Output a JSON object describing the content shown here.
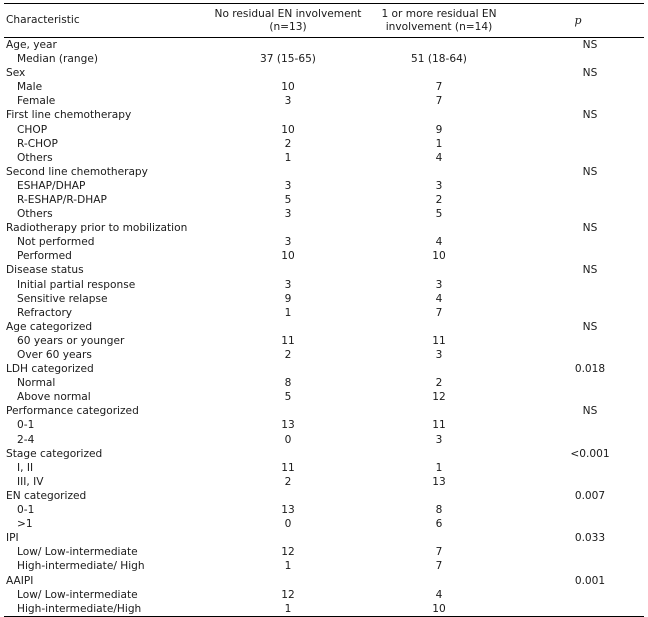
{
  "table": {
    "headers": {
      "characteristic": "Characteristic",
      "group1": "No residual EN involvement (n=13)",
      "group2": "1 or more residual EN involvement (n=14)",
      "p": "p"
    },
    "rows": [
      {
        "label": "Age, year",
        "indent": false,
        "g1": "",
        "g2": "",
        "p": "NS"
      },
      {
        "label": "Median (range)",
        "indent": true,
        "g1": "37 (15-65)",
        "g2": "51 (18-64)",
        "p": ""
      },
      {
        "label": "Sex",
        "indent": false,
        "g1": "",
        "g2": "",
        "p": "NS"
      },
      {
        "label": "Male",
        "indent": true,
        "g1": "10",
        "g2": "7",
        "p": ""
      },
      {
        "label": "Female",
        "indent": true,
        "g1": "3",
        "g2": "7",
        "p": ""
      },
      {
        "label": "First line chemotherapy",
        "indent": false,
        "g1": "",
        "g2": "",
        "p": "NS"
      },
      {
        "label": "CHOP",
        "indent": true,
        "g1": "10",
        "g2": "9",
        "p": ""
      },
      {
        "label": "R-CHOP",
        "indent": true,
        "g1": "2",
        "g2": "1",
        "p": ""
      },
      {
        "label": "Others",
        "indent": true,
        "g1": "1",
        "g2": "4",
        "p": ""
      },
      {
        "label": "Second line chemotherapy",
        "indent": false,
        "g1": "",
        "g2": "",
        "p": "NS"
      },
      {
        "label": "ESHAP/DHAP",
        "indent": true,
        "g1": "3",
        "g2": "3",
        "p": ""
      },
      {
        "label": "R-ESHAP/R-DHAP",
        "indent": true,
        "g1": "5",
        "g2": "2",
        "p": ""
      },
      {
        "label": "Others",
        "indent": true,
        "g1": "3",
        "g2": "5",
        "p": ""
      },
      {
        "label": "Radiotherapy prior to mobilization",
        "indent": false,
        "g1": "",
        "g2": "",
        "p": "NS"
      },
      {
        "label": "Not performed",
        "indent": true,
        "g1": "3",
        "g2": "4",
        "p": ""
      },
      {
        "label": "Performed",
        "indent": true,
        "g1": "10",
        "g2": "10",
        "p": ""
      },
      {
        "label": "Disease status",
        "indent": false,
        "g1": "",
        "g2": "",
        "p": "NS"
      },
      {
        "label": "Initial partial response",
        "indent": true,
        "g1": "3",
        "g2": "3",
        "p": ""
      },
      {
        "label": "Sensitive relapse",
        "indent": true,
        "g1": "9",
        "g2": "4",
        "p": ""
      },
      {
        "label": "Refractory",
        "indent": true,
        "g1": "1",
        "g2": "7",
        "p": ""
      },
      {
        "label": "Age categorized",
        "indent": false,
        "g1": "",
        "g2": "",
        "p": "NS"
      },
      {
        "label": "60 years or younger",
        "indent": true,
        "g1": "11",
        "g2": "11",
        "p": ""
      },
      {
        "label": "Over 60 years",
        "indent": true,
        "g1": "2",
        "g2": "3",
        "p": ""
      },
      {
        "label": "LDH categorized",
        "indent": false,
        "g1": "",
        "g2": "",
        "p": "0.018"
      },
      {
        "label": "Normal",
        "indent": true,
        "g1": "8",
        "g2": "2",
        "p": ""
      },
      {
        "label": "Above normal",
        "indent": true,
        "g1": "5",
        "g2": "12",
        "p": ""
      },
      {
        "label": "Performance categorized",
        "indent": false,
        "g1": "",
        "g2": "",
        "p": "NS"
      },
      {
        "label": "0-1",
        "indent": true,
        "g1": "13",
        "g2": "11",
        "p": ""
      },
      {
        "label": "2-4",
        "indent": true,
        "g1": "0",
        "g2": "3",
        "p": ""
      },
      {
        "label": "Stage categorized",
        "indent": false,
        "g1": "",
        "g2": "",
        "p": "<0.001"
      },
      {
        "label": "I, II",
        "indent": true,
        "g1": "11",
        "g2": "1",
        "p": ""
      },
      {
        "label": "III, IV",
        "indent": true,
        "g1": "2",
        "g2": "13",
        "p": ""
      },
      {
        "label": "EN categorized",
        "indent": false,
        "g1": "",
        "g2": "",
        "p": "0.007"
      },
      {
        "label": "0-1",
        "indent": true,
        "g1": "13",
        "g2": "8",
        "p": ""
      },
      {
        "label": ">1",
        "indent": true,
        "g1": "0",
        "g2": "6",
        "p": ""
      },
      {
        "label": "IPI",
        "indent": false,
        "g1": "",
        "g2": "",
        "p": "0.033"
      },
      {
        "label": "Low/ Low-intermediate",
        "indent": true,
        "g1": "12",
        "g2": "7",
        "p": ""
      },
      {
        "label": "High-intermediate/ High",
        "indent": true,
        "g1": "1",
        "g2": "7",
        "p": ""
      },
      {
        "label": "AAIPI",
        "indent": false,
        "g1": "",
        "g2": "",
        "p": "0.001"
      },
      {
        "label": "Low/ Low-intermediate",
        "indent": true,
        "g1": "12",
        "g2": "4",
        "p": ""
      },
      {
        "label": "High-intermediate/High",
        "indent": true,
        "g1": "1",
        "g2": "10",
        "p": ""
      }
    ]
  }
}
